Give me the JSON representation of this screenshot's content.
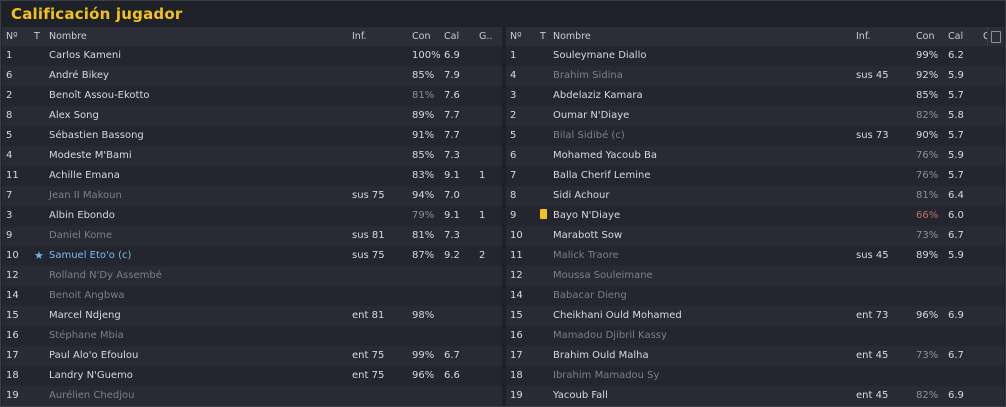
{
  "title": "Calificación jugador",
  "columns": {
    "num": "Nº",
    "t": "T",
    "name": "Nombre",
    "inf": "Inf.",
    "con": "Con",
    "cal": "Cal",
    "g": "G.."
  },
  "left_team": {
    "players": [
      {
        "num": "1",
        "name": "Carlos Kameni",
        "inf": "",
        "con": "100%",
        "cal": "6.9",
        "g": "",
        "dim": false,
        "con_style": "normal"
      },
      {
        "num": "6",
        "name": "André Bikey",
        "inf": "",
        "con": "85%",
        "cal": "7.9",
        "g": "",
        "dim": false,
        "con_style": "normal"
      },
      {
        "num": "2",
        "name": "Benoît Assou-Ekotto",
        "inf": "",
        "con": "81%",
        "cal": "7.6",
        "g": "",
        "dim": false,
        "con_style": "dim"
      },
      {
        "num": "8",
        "name": "Alex Song",
        "inf": "",
        "con": "89%",
        "cal": "7.7",
        "g": "",
        "dim": false,
        "con_style": "normal"
      },
      {
        "num": "5",
        "name": "Sébastien Bassong",
        "inf": "",
        "con": "91%",
        "cal": "7.7",
        "g": "",
        "dim": false,
        "con_style": "normal"
      },
      {
        "num": "4",
        "name": "Modeste M'Bami",
        "inf": "",
        "con": "85%",
        "cal": "7.3",
        "g": "",
        "dim": false,
        "con_style": "normal"
      },
      {
        "num": "11",
        "name": "Achille Emana",
        "inf": "",
        "con": "83%",
        "cal": "9.1",
        "g": "1",
        "dim": false,
        "con_style": "normal"
      },
      {
        "num": "7",
        "name": "Jean II Makoun",
        "inf": "sus 75",
        "con": "94%",
        "cal": "7.0",
        "g": "",
        "dim": true,
        "con_style": "normal"
      },
      {
        "num": "3",
        "name": "Albin Ebondo",
        "inf": "",
        "con": "79%",
        "cal": "9.1",
        "g": "1",
        "dim": false,
        "con_style": "dim"
      },
      {
        "num": "9",
        "name": "Daniel Kome",
        "inf": "sus 81",
        "con": "81%",
        "cal": "7.3",
        "g": "",
        "dim": true,
        "con_style": "normal"
      },
      {
        "num": "10",
        "name": "Samuel Eto'o (c)",
        "inf": "sus 75",
        "con": "87%",
        "cal": "9.2",
        "g": "2",
        "dim": false,
        "con_style": "normal",
        "star": true
      },
      {
        "num": "12",
        "name": "Rolland N'Dy Assembé",
        "inf": "",
        "con": "",
        "cal": "",
        "g": "",
        "dim": true,
        "con_style": "normal"
      },
      {
        "num": "14",
        "name": "Benoit Angbwa",
        "inf": "",
        "con": "",
        "cal": "",
        "g": "",
        "dim": true,
        "con_style": "normal"
      },
      {
        "num": "15",
        "name": "Marcel Ndjeng",
        "inf": "ent 81",
        "con": "98%",
        "cal": "",
        "g": "",
        "dim": false,
        "con_style": "normal"
      },
      {
        "num": "16",
        "name": "Stéphane Mbia",
        "inf": "",
        "con": "",
        "cal": "",
        "g": "",
        "dim": true,
        "con_style": "normal"
      },
      {
        "num": "17",
        "name": "Paul Alo'o Efoulou",
        "inf": "ent 75",
        "con": "99%",
        "cal": "6.7",
        "g": "",
        "dim": false,
        "con_style": "normal"
      },
      {
        "num": "18",
        "name": "Landry N'Guemo",
        "inf": "ent 75",
        "con": "96%",
        "cal": "6.6",
        "g": "",
        "dim": false,
        "con_style": "normal"
      },
      {
        "num": "19",
        "name": "Aurélien Chedjou",
        "inf": "",
        "con": "",
        "cal": "",
        "g": "",
        "dim": true,
        "con_style": "normal"
      }
    ]
  },
  "right_team": {
    "players": [
      {
        "num": "1",
        "name": "Souleymane Diallo",
        "inf": "",
        "con": "99%",
        "cal": "6.2",
        "g": "",
        "dim": false,
        "con_style": "normal"
      },
      {
        "num": "4",
        "name": "Brahim Sidina",
        "inf": "sus 45",
        "con": "92%",
        "cal": "5.9",
        "g": "",
        "dim": true,
        "con_style": "normal"
      },
      {
        "num": "3",
        "name": "Abdelaziz Kamara",
        "inf": "",
        "con": "85%",
        "cal": "5.7",
        "g": "",
        "dim": false,
        "con_style": "normal"
      },
      {
        "num": "2",
        "name": "Oumar N'Diaye",
        "inf": "",
        "con": "82%",
        "cal": "5.8",
        "g": "",
        "dim": false,
        "con_style": "dim"
      },
      {
        "num": "5",
        "name": "Bilal Sidibé (c)",
        "inf": "sus 73",
        "con": "90%",
        "cal": "5.7",
        "g": "",
        "dim": true,
        "con_style": "normal"
      },
      {
        "num": "6",
        "name": "Mohamed Yacoub Ba",
        "inf": "",
        "con": "76%",
        "cal": "5.9",
        "g": "",
        "dim": false,
        "con_style": "dim"
      },
      {
        "num": "7",
        "name": "Balla Cherif Lemine",
        "inf": "",
        "con": "76%",
        "cal": "5.7",
        "g": "",
        "dim": false,
        "con_style": "dim"
      },
      {
        "num": "8",
        "name": "Sidi Achour",
        "inf": "",
        "con": "81%",
        "cal": "6.4",
        "g": "",
        "dim": false,
        "con_style": "dim"
      },
      {
        "num": "9",
        "name": "Bayo N'Diaye",
        "inf": "",
        "con": "66%",
        "cal": "6.0",
        "g": "",
        "dim": false,
        "con_style": "red",
        "yellow": true
      },
      {
        "num": "10",
        "name": "Marabott Sow",
        "inf": "",
        "con": "73%",
        "cal": "6.7",
        "g": "",
        "dim": false,
        "con_style": "dim"
      },
      {
        "num": "11",
        "name": "Malick Traore",
        "inf": "sus 45",
        "con": "89%",
        "cal": "5.9",
        "g": "",
        "dim": true,
        "con_style": "normal"
      },
      {
        "num": "12",
        "name": "Moussa Souleimane",
        "inf": "",
        "con": "",
        "cal": "",
        "g": "",
        "dim": true,
        "con_style": "normal"
      },
      {
        "num": "14",
        "name": "Babacar Dieng",
        "inf": "",
        "con": "",
        "cal": "",
        "g": "",
        "dim": true,
        "con_style": "normal"
      },
      {
        "num": "15",
        "name": "Cheikhani Ould Mohamed",
        "inf": "ent 73",
        "con": "96%",
        "cal": "6.9",
        "g": "",
        "dim": false,
        "con_style": "normal"
      },
      {
        "num": "16",
        "name": "Mamadou Djibril Kassy",
        "inf": "",
        "con": "",
        "cal": "",
        "g": "",
        "dim": true,
        "con_style": "normal"
      },
      {
        "num": "17",
        "name": "Brahim Ould Malha",
        "inf": "ent 45",
        "con": "73%",
        "cal": "6.7",
        "g": "",
        "dim": false,
        "con_style": "dim"
      },
      {
        "num": "18",
        "name": "Ibrahim Mamadou Sy",
        "inf": "",
        "con": "",
        "cal": "",
        "g": "",
        "dim": true,
        "con_style": "normal"
      },
      {
        "num": "19",
        "name": "Yacoub Fall",
        "inf": "ent 45",
        "con": "82%",
        "cal": "6.9",
        "g": "",
        "dim": false,
        "con_style": "dim"
      }
    ]
  },
  "colors": {
    "title": "#f2c21a",
    "captain": "#77bde9",
    "yellow_card": "#f2c21a",
    "low_condition": "#b9706a"
  }
}
